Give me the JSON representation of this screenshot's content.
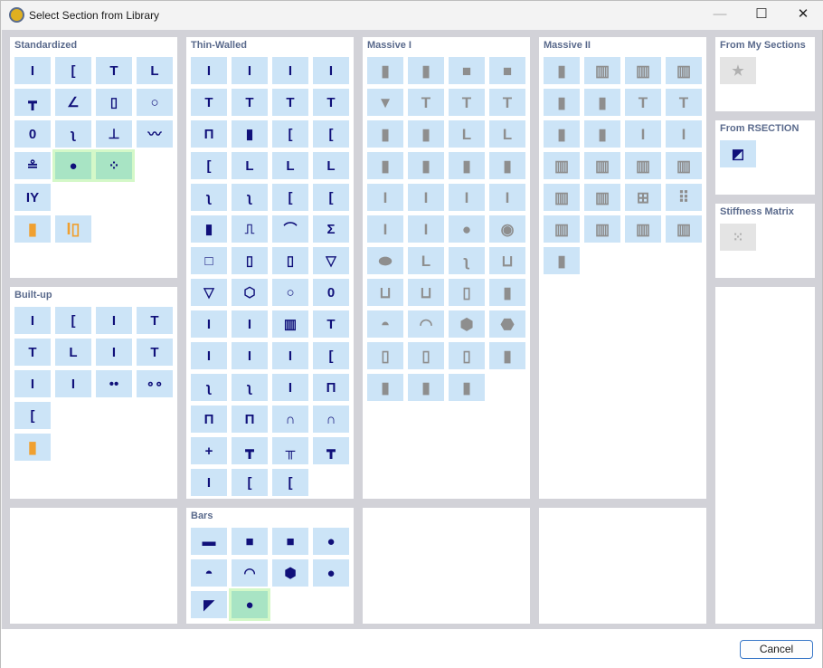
{
  "window": {
    "title": "Select Section from Library",
    "minimize": "—",
    "maximize": "☐",
    "close": "✕"
  },
  "panels": {
    "standardized": {
      "title": "Standardized",
      "rows": [
        [
          "i-section",
          "channel",
          "t-section",
          "angle"
        ],
        [
          "double-tee",
          "unequal-angle",
          "rect-hollow",
          "circular-hollow"
        ],
        [
          "oval-hollow",
          "z-section",
          "rail",
          "sheet-pile"
        ],
        [
          "crane-rail",
          "round-bar:selected",
          "strand:selected"
        ],
        [
          "castellated-beam"
        ],
        [
          "timber-rect:orange",
          "timber-built-up:orange"
        ]
      ]
    },
    "builtup": {
      "title": "Built-up",
      "rows": [
        [
          "double-i",
          "double-channel-back",
          "i-with-channel",
          "t-with-plate"
        ],
        [
          "double-angle-tee",
          "double-angle-pi",
          "i-with-plates",
          "i-with-tee"
        ],
        [
          "i-tapered",
          "i-stiffened",
          "double-round-bar",
          "double-tube"
        ],
        [
          "channel-with-plate"
        ],
        [
          "timber-glulam:orange"
        ]
      ]
    },
    "thinwalled": {
      "title": "Thin-Walled",
      "rows": [
        [
          "i-symmetric",
          "i-asymmetric",
          "i-tapered-flange",
          "i-mono"
        ],
        [
          "t-section",
          "t-unequal",
          "t-tapered",
          "t-asymmetric"
        ],
        [
          "pi-section",
          "double-web",
          "channel",
          "channel-lipped"
        ],
        [
          "channel-wide",
          "angle",
          "angle-unequal",
          "angle-lipped"
        ],
        [
          "z-section",
          "z-lipped",
          "c-lipped",
          "c-return"
        ],
        [
          "sigma-back",
          "hat",
          "arc",
          "sigma"
        ],
        [
          "square-hollow",
          "rect-hollow",
          "rect-hollow-thick",
          "trapezoid-hollow"
        ],
        [
          "trapezoid-inverted",
          "octagon-hollow",
          "circle-hollow",
          "oval-hollow"
        ],
        [
          "i-plate",
          "i-plate-narrow",
          "double-box",
          "t-thick"
        ],
        [
          "i-unequal",
          "i-wide",
          "i-symmetric-thick",
          "c-open"
        ],
        [
          "z-hook",
          "z-hook-mirrored",
          "double-i-web",
          "pi-wide"
        ],
        [
          "pi-closed",
          "pi-closed-lipped",
          "arch-hollow",
          "arch-pointed"
        ],
        [
          "cross",
          "tee-double",
          "pi-open",
          "tee-short"
        ],
        [
          "i-double-web",
          "double-channel-face",
          "double-channel-back"
        ]
      ]
    },
    "massive1": {
      "title": "Massive I",
      "rows": [
        [
          "rectangle:gray",
          "rounded-rectangle:gray",
          "square:gray",
          "rounded-square:gray"
        ],
        [
          "trapezoid:gray",
          "t-beam:gray",
          "t-beam-haunched:gray",
          "t-beam-narrow:gray"
        ],
        [
          "inverted-trapezoid-t:gray",
          "inverted-trapezoid-t-rounded:gray",
          "l-beam:gray",
          "l-beam-haunched:gray"
        ],
        [
          "cross-beam:gray",
          "double-t:gray",
          "double-t-haunched:gray",
          "double-t-tapered:gray"
        ],
        [
          "i-beam:gray",
          "i-beam-narrow:gray",
          "i-beam-haunched:gray",
          "i-beam-asymmetric:gray"
        ],
        [
          "i-beam-mono:gray",
          "i-beam-mono-haunched:gray",
          "circle:gray",
          "ring:gray"
        ],
        [
          "ellipse:gray",
          "l-solid:gray",
          "z-solid:gray",
          "u-solid:gray"
        ],
        [
          "u-trough:gray",
          "u-trough-tapered:gray",
          "rect-hollow-solid:gray",
          "rounded-hollow-solid:gray"
        ],
        [
          "half-circle:gray",
          "circle-segment:gray",
          "hexagon:gray",
          "octagon:gray"
        ],
        [
          "chamfered-rect:gray",
          "notched-rect:gray",
          "pointed-rect:gray",
          "swallowtail:gray"
        ],
        [
          "stepped-post:gray",
          "stepped-post-narrow:gray",
          "parallelogram:gray"
        ]
      ]
    },
    "massive2": {
      "title": "Massive II",
      "rows": [
        [
          "rounded-divided:gray",
          "two-cell:gray",
          "three-cell:gray",
          "four-cell:gray"
        ],
        [
          "cross-stiffened:gray",
          "double-cross-stiffened:gray",
          "t-beam-wide:gray",
          "t-beam-wide-offset:gray"
        ],
        [
          "portal-frame:gray",
          "portal-frame-tapered:gray",
          "i-beam-compact:gray",
          "i-beam-compact-asymmetric:gray"
        ],
        [
          "double-web-box:gray",
          "multi-web-box:gray",
          "box-hollow:gray",
          "box-hollow-tall:gray"
        ],
        [
          "two-cell-box:gray",
          "three-cell-box:gray",
          "four-square-grid:gray",
          "six-square-grid:gray"
        ],
        [
          "layered-i:gray",
          "two-layer-rect:gray",
          "three-layer-rect:gray",
          "multi-layer-rect:gray"
        ],
        [
          "folded-plate:gray"
        ]
      ]
    },
    "bars": {
      "title": "Bars",
      "rows": [
        [
          "flat-bar",
          "square-bar",
          "rounded-square-bar",
          "round-bar"
        ],
        [
          "half-round-bar",
          "segment-bar",
          "hexagon-bar",
          "octagon-bar"
        ],
        [
          "triangle-bar",
          "lens-bar:selected"
        ]
      ]
    },
    "mysections": {
      "title": "From My Sections",
      "rows": [
        [
          "star:disabled"
        ]
      ]
    },
    "rsection": {
      "title": "From RSECTION",
      "rows": [
        [
          "rsection-import"
        ]
      ]
    },
    "stiffness": {
      "title": "Stiffness Matrix",
      "rows": [
        [
          "matrix:disabled"
        ]
      ]
    }
  },
  "footer": {
    "cancel": "Cancel"
  }
}
